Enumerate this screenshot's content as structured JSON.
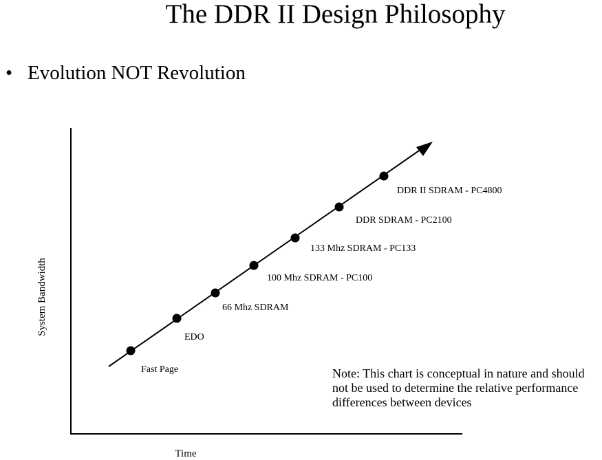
{
  "slide": {
    "title": "The DDR II Design Philosophy",
    "bullet": "Evolution NOT Revolution",
    "bullet_marker": "•"
  },
  "note": "Note: This chart is conceptual in nature and should not be used to determine the relative performance differences between devices",
  "diagram": {
    "x_axis_label": "Time",
    "y_axis_label": "System Bandwidth",
    "points": [
      "Fast Page",
      "EDO",
      "66 Mhz SDRAM",
      "100 Mhz SDRAM - PC100",
      "133 Mhz SDRAM - PC133",
      "DDR SDRAM - PC2100",
      "DDR II SDRAM - PC4800"
    ]
  }
}
